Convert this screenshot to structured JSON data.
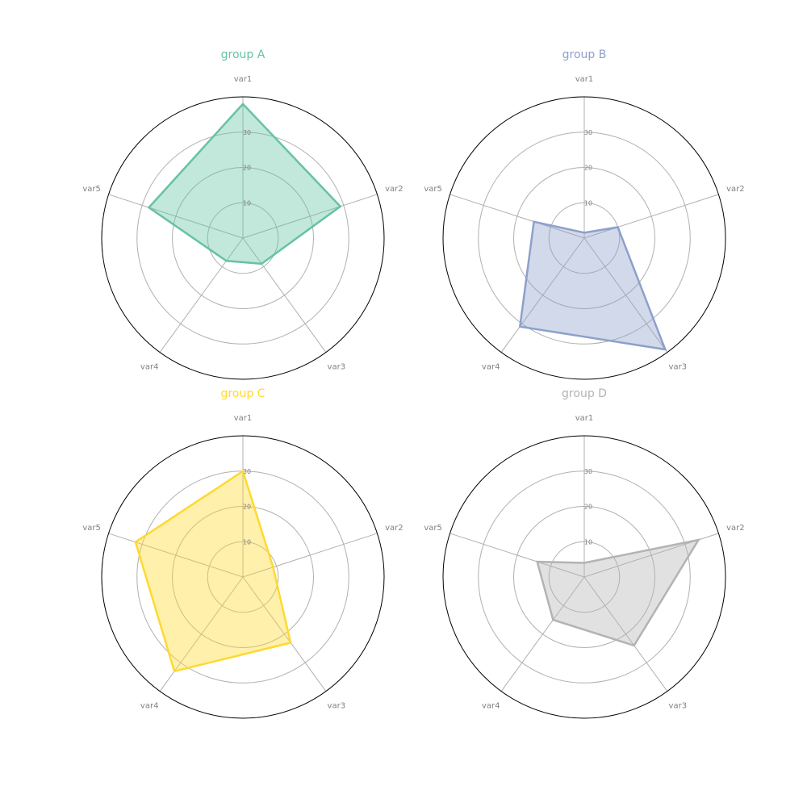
{
  "chart_data": [
    {
      "type": "radar",
      "title": "group A",
      "color": "#66c2a5",
      "categories": [
        "var1",
        "var2",
        "var3",
        "var4",
        "var5"
      ],
      "values": [
        38,
        29,
        9,
        8,
        28
      ],
      "rticks": [
        "10",
        "20",
        "30"
      ],
      "rtick_values": [
        10,
        20,
        30
      ],
      "rlim": [
        0,
        40
      ]
    },
    {
      "type": "radar",
      "title": "group B",
      "color": "#8da0cb",
      "categories": [
        "var1",
        "var2",
        "var3",
        "var4",
        "var5"
      ],
      "values": [
        1.5,
        10,
        39,
        31,
        15
      ],
      "rticks": [
        "10",
        "20",
        "30"
      ],
      "rtick_values": [
        10,
        20,
        30
      ],
      "rlim": [
        0,
        40
      ]
    },
    {
      "type": "radar",
      "title": "group C",
      "color": "#ffd92f",
      "categories": [
        "var1",
        "var2",
        "var3",
        "var4",
        "var5"
      ],
      "values": [
        30,
        9,
        23,
        33,
        32
      ],
      "rticks": [
        "10",
        "20",
        "30"
      ],
      "rtick_values": [
        10,
        20,
        30
      ],
      "rlim": [
        0,
        40
      ]
    },
    {
      "type": "radar",
      "title": "group D",
      "color": "#b3b3b3",
      "categories": [
        "var1",
        "var2",
        "var3",
        "var4",
        "var5"
      ],
      "values": [
        4,
        34,
        24,
        15,
        14
      ],
      "rticks": [
        "10",
        "20",
        "30"
      ],
      "rtick_values": [
        10,
        20,
        30
      ],
      "rlim": [
        0,
        40
      ]
    }
  ]
}
